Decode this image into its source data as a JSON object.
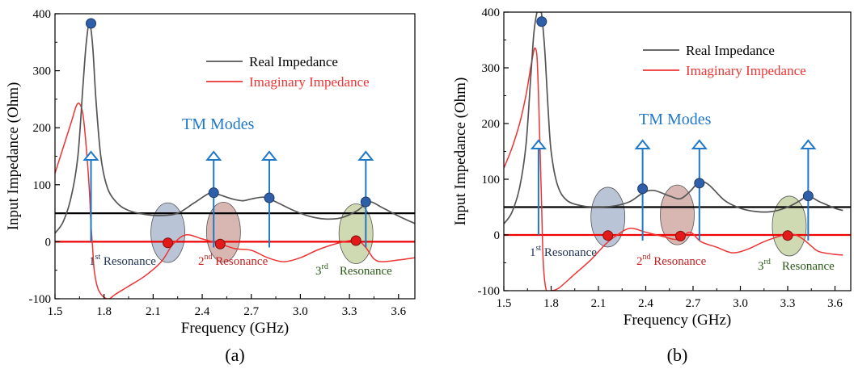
{
  "colors": {
    "real": "#555555",
    "imag": "#ee3333",
    "ref50": "#000000",
    "zero": "#ee0000",
    "marker_blue": "#2e5fa8",
    "marker_red": "#e41a1a",
    "arrow": "#1f78c8",
    "tm_text": "#1f78c8",
    "res1_text": "#223355",
    "res2_text": "#c82020",
    "res3_text": "#2a5a18",
    "ell1": "#7f95b5",
    "ell2": "#b87a72",
    "ell3": "#a7b972"
  },
  "chart_data": [
    {
      "type": "line",
      "panel_label": "(a)",
      "xlabel": "Frequency (GHz)",
      "ylabel": "Input Impedance (Ohm)",
      "xlim": [
        1.5,
        3.7
      ],
      "ylim": [
        -100,
        400
      ],
      "xticks": [
        "1.5",
        "1.8",
        "2.1",
        "2.4",
        "2.7",
        "3.0",
        "3.3",
        "3.6"
      ],
      "yticks": [
        "-100",
        "0",
        "100",
        "200",
        "300",
        "400"
      ],
      "legend": {
        "placement": "top-right",
        "entries": [
          "Real Impedance",
          "Imaginary Impedance"
        ]
      },
      "series": [
        {
          "name": "Real Impedance",
          "x": [
            1.5,
            1.55,
            1.6,
            1.64,
            1.67,
            1.69,
            1.71,
            1.73,
            1.75,
            1.78,
            1.82,
            1.88,
            1.95,
            2.05,
            2.15,
            2.25,
            2.35,
            2.45,
            2.5,
            2.55,
            2.6,
            2.65,
            2.7,
            2.78,
            2.85,
            2.95,
            3.05,
            3.15,
            3.25,
            3.35,
            3.42,
            3.5,
            3.6,
            3.7
          ],
          "y": [
            15,
            35,
            80,
            150,
            270,
            345,
            383,
            345,
            250,
            150,
            95,
            68,
            55,
            48,
            46,
            50,
            68,
            86,
            83,
            78,
            74,
            72,
            75,
            78,
            70,
            56,
            45,
            40,
            42,
            55,
            70,
            60,
            45,
            32
          ]
        },
        {
          "name": "Imaginary Impedance",
          "x": [
            1.5,
            1.55,
            1.6,
            1.63,
            1.65,
            1.67,
            1.69,
            1.71,
            1.72,
            1.73,
            1.74,
            1.76,
            1.79,
            1.83,
            1.87,
            1.95,
            2.05,
            2.15,
            2.22,
            2.3,
            2.4,
            2.5,
            2.6,
            2.7,
            2.8,
            2.9,
            3.0,
            3.1,
            3.2,
            3.3,
            3.35,
            3.4,
            3.45,
            3.5,
            3.6,
            3.7
          ],
          "y": [
            120,
            165,
            210,
            238,
            242,
            225,
            170,
            90,
            30,
            -10,
            -50,
            -80,
            -95,
            -100,
            -92,
            -78,
            -60,
            -35,
            -5,
            12,
            5,
            -3,
            -12,
            -15,
            -28,
            -35,
            -28,
            -15,
            -5,
            2,
            3,
            -10,
            -30,
            -35,
            -32,
            -28
          ]
        },
        {
          "name": "50 Ohm reference",
          "x": [
            1.5,
            3.7
          ],
          "y": [
            50,
            50
          ]
        },
        {
          "name": "Zero line",
          "x": [
            1.5,
            3.7
          ],
          "y": [
            0,
            0
          ]
        }
      ],
      "markers_real": [
        {
          "x": 1.72,
          "y": 383
        },
        {
          "x": 2.47,
          "y": 86
        },
        {
          "x": 2.81,
          "y": 77
        },
        {
          "x": 3.4,
          "y": 70
        }
      ],
      "markers_imag": [
        {
          "x": 2.19,
          "y": -2
        },
        {
          "x": 2.51,
          "y": -4
        },
        {
          "x": 3.34,
          "y": 2
        }
      ],
      "arrows_x": [
        1.72,
        2.47,
        2.81,
        3.4
      ],
      "resonances": [
        {
          "label": "1",
          "sup": "st",
          "suffix": " Resonance",
          "x": 2.19,
          "y": 16
        },
        {
          "label": "2",
          "sup": "nd",
          "suffix": " Resonance",
          "x": 2.53,
          "y": 17
        },
        {
          "label": "3",
          "sup": "rd",
          "suffix": "Resonance",
          "x": 3.34,
          "y": 14
        }
      ],
      "tm_label": "TM Modes"
    },
    {
      "type": "line",
      "panel_label": "(b)",
      "xlabel": "Frequency (GHz)",
      "ylabel": "Input Impedance (Ohm)",
      "xlim": [
        1.5,
        3.7
      ],
      "ylim": [
        -100,
        400
      ],
      "xticks": [
        "1.5",
        "1.8",
        "2.1",
        "2.4",
        "2.7",
        "3.0",
        "3.3",
        "3.6"
      ],
      "yticks": [
        "-100",
        "0",
        "100",
        "200",
        "300",
        "400"
      ],
      "legend": {
        "placement": "top-right",
        "entries": [
          "Real Impedance",
          "Imaginary Impedance"
        ]
      },
      "series": [
        {
          "name": "Real Impedance",
          "x": [
            1.5,
            1.55,
            1.6,
            1.64,
            1.67,
            1.69,
            1.71,
            1.72,
            1.73,
            1.74,
            1.76,
            1.78,
            1.8,
            1.84,
            1.9,
            2.0,
            2.1,
            2.2,
            2.3,
            2.38,
            2.45,
            2.55,
            2.62,
            2.68,
            2.74,
            2.8,
            2.9,
            3.0,
            3.1,
            3.2,
            3.3,
            3.38,
            3.43,
            3.5,
            3.6,
            3.65
          ],
          "y": [
            20,
            40,
            85,
            160,
            280,
            360,
            400,
            400,
            400,
            395,
            330,
            230,
            150,
            90,
            62,
            52,
            50,
            52,
            60,
            75,
            80,
            70,
            65,
            78,
            95,
            90,
            62,
            48,
            42,
            42,
            50,
            62,
            70,
            60,
            48,
            44
          ]
        },
        {
          "name": "Imaginary Impedance",
          "x": [
            1.5,
            1.55,
            1.6,
            1.64,
            1.67,
            1.69,
            1.7,
            1.71,
            1.72,
            1.73,
            1.74,
            1.75,
            1.77,
            1.8,
            1.85,
            1.95,
            2.05,
            2.15,
            2.22,
            2.3,
            2.4,
            2.5,
            2.6,
            2.68,
            2.75,
            2.85,
            2.95,
            3.05,
            3.15,
            3.25,
            3.3,
            3.35,
            3.4,
            3.45,
            3.5,
            3.6,
            3.65
          ],
          "y": [
            120,
            155,
            200,
            250,
            300,
            330,
            335,
            320,
            250,
            150,
            50,
            -50,
            -100,
            -100,
            -95,
            -70,
            -45,
            -15,
            0,
            12,
            5,
            -2,
            -8,
            5,
            -12,
            -22,
            -32,
            -25,
            -12,
            -2,
            2,
            0,
            -8,
            -20,
            -30,
            -35,
            -36
          ]
        },
        {
          "name": "50 Ohm reference",
          "x": [
            1.5,
            3.7
          ],
          "y": [
            50,
            50
          ]
        },
        {
          "name": "Zero line",
          "x": [
            1.5,
            3.7
          ],
          "y": [
            0,
            0
          ]
        }
      ],
      "markers_real": [
        {
          "x": 1.74,
          "y": 383
        },
        {
          "x": 2.38,
          "y": 83
        },
        {
          "x": 2.74,
          "y": 93
        },
        {
          "x": 3.43,
          "y": 70
        }
      ],
      "markers_imag": [
        {
          "x": 2.16,
          "y": -1
        },
        {
          "x": 2.62,
          "y": -2
        },
        {
          "x": 3.3,
          "y": -1
        }
      ],
      "arrows_x": [
        1.72,
        2.38,
        2.74,
        3.43
      ],
      "resonances": [
        {
          "label": "1",
          "sup": "st",
          "suffix": " Resonance",
          "x": 2.16,
          "y": 32
        },
        {
          "label": "2",
          "sup": "nd",
          "suffix": " Resonance",
          "x": 2.6,
          "y": 36
        },
        {
          "label": "3",
          "sup": "rd",
          "suffix": "Resonance",
          "x": 3.31,
          "y": 16
        }
      ],
      "tm_label": "TM Modes"
    }
  ]
}
